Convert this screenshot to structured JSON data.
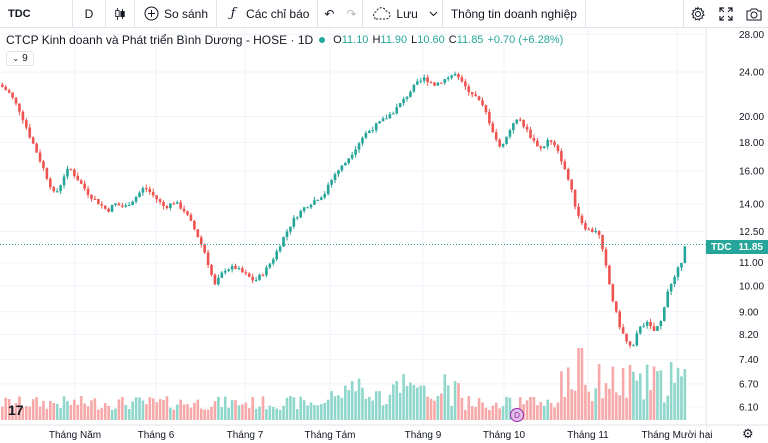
{
  "toolbar": {
    "symbol": "TDC",
    "interval": "D",
    "compare_label": "So sánh",
    "indicators_label": "Các chỉ báo",
    "save_label": "Lưu",
    "company_info_label": "Thông tin doanh nghiệp",
    "icons": [
      "candles-icon",
      "plus-circle-icon",
      "fx-icon",
      "undo-icon",
      "redo-icon",
      "cloud-icon",
      "chevron-down-icon",
      "gear-icon",
      "fullscreen-icon",
      "camera-icon"
    ]
  },
  "legend": {
    "title": "CTCP Kinh doanh và Phát triển Bình Dương - HOSE · 1D",
    "open_label": "O",
    "open": "11.10",
    "high_label": "H",
    "high": "11.90",
    "low_label": "L",
    "low": "10.60",
    "close_label": "C",
    "close": "11.85",
    "change": "+0.70 (+6.28%)",
    "indicator_count": "9"
  },
  "price_badge": {
    "symbol": "TDC",
    "value": "11.85"
  },
  "logo_text": "17",
  "event_badge": "D",
  "colors": {
    "up": "#26a69a",
    "down": "#ef5350",
    "up_volume": "#8fd6cb",
    "down_volume": "#f6a9a8"
  },
  "chart_data": {
    "type": "candlestick",
    "y_axis_ticks": [
      "28.00",
      "24.00",
      "20.00",
      "18.00",
      "16.00",
      "14.00",
      "12.50",
      "11.00",
      "10.00",
      "9.00",
      "8.20",
      "7.40",
      "6.70",
      "6.10"
    ],
    "y_scale": "log",
    "ylim": [
      5.9,
      28.5
    ],
    "x_axis_labels": [
      "Tháng Năm",
      "Tháng 6",
      "Tháng 7",
      "Tháng Tám",
      "Tháng 9",
      "Tháng 10",
      "Tháng 11",
      "Tháng Mười hai"
    ],
    "last_close": 11.85,
    "price_path": [
      [
        0,
        22.8
      ],
      [
        10,
        22.0
      ],
      [
        20,
        20.5
      ],
      [
        30,
        18.5
      ],
      [
        40,
        16.8
      ],
      [
        48,
        15.5
      ],
      [
        55,
        14.5
      ],
      [
        60,
        15.0
      ],
      [
        65,
        15.8
      ],
      [
        70,
        16.2
      ],
      [
        80,
        15.3
      ],
      [
        90,
        14.5
      ],
      [
        100,
        14.0
      ],
      [
        108,
        13.6
      ],
      [
        115,
        14.0
      ],
      [
        125,
        13.8
      ],
      [
        135,
        14.3
      ],
      [
        145,
        15.0
      ],
      [
        155,
        14.4
      ],
      [
        165,
        13.8
      ],
      [
        175,
        14.1
      ],
      [
        185,
        13.6
      ],
      [
        195,
        12.6
      ],
      [
        205,
        11.5
      ],
      [
        215,
        10.0
      ],
      [
        225,
        10.7
      ],
      [
        235,
        10.8
      ],
      [
        245,
        10.5
      ],
      [
        255,
        10.2
      ],
      [
        265,
        10.6
      ],
      [
        275,
        11.3
      ],
      [
        285,
        12.3
      ],
      [
        295,
        13.2
      ],
      [
        305,
        13.8
      ],
      [
        315,
        14.2
      ],
      [
        325,
        14.6
      ],
      [
        335,
        15.8
      ],
      [
        345,
        16.5
      ],
      [
        355,
        17.5
      ],
      [
        365,
        18.6
      ],
      [
        375,
        19.2
      ],
      [
        385,
        19.8
      ],
      [
        395,
        20.5
      ],
      [
        405,
        21.5
      ],
      [
        415,
        22.7
      ],
      [
        425,
        23.4
      ],
      [
        435,
        22.8
      ],
      [
        445,
        23.3
      ],
      [
        455,
        23.8
      ],
      [
        465,
        22.6
      ],
      [
        475,
        21.8
      ],
      [
        485,
        20.6
      ],
      [
        493,
        18.9
      ],
      [
        500,
        17.6
      ],
      [
        507,
        18.4
      ],
      [
        514,
        19.6
      ],
      [
        521,
        19.7
      ],
      [
        528,
        18.8
      ],
      [
        535,
        18.0
      ],
      [
        542,
        17.5
      ],
      [
        549,
        18.2
      ],
      [
        556,
        17.6
      ],
      [
        563,
        16.6
      ],
      [
        570,
        15.2
      ],
      [
        577,
        13.6
      ],
      [
        584,
        12.8
      ],
      [
        591,
        12.5
      ],
      [
        598,
        12.6
      ],
      [
        605,
        11.1
      ],
      [
        612,
        9.6
      ],
      [
        619,
        8.6
      ],
      [
        626,
        8.0
      ],
      [
        633,
        7.7
      ],
      [
        640,
        8.5
      ],
      [
        647,
        8.6
      ],
      [
        654,
        8.3
      ],
      [
        661,
        8.6
      ],
      [
        668,
        9.8
      ],
      [
        675,
        10.3
      ],
      [
        682,
        11.1
      ],
      [
        684,
        11.85
      ]
    ]
  }
}
